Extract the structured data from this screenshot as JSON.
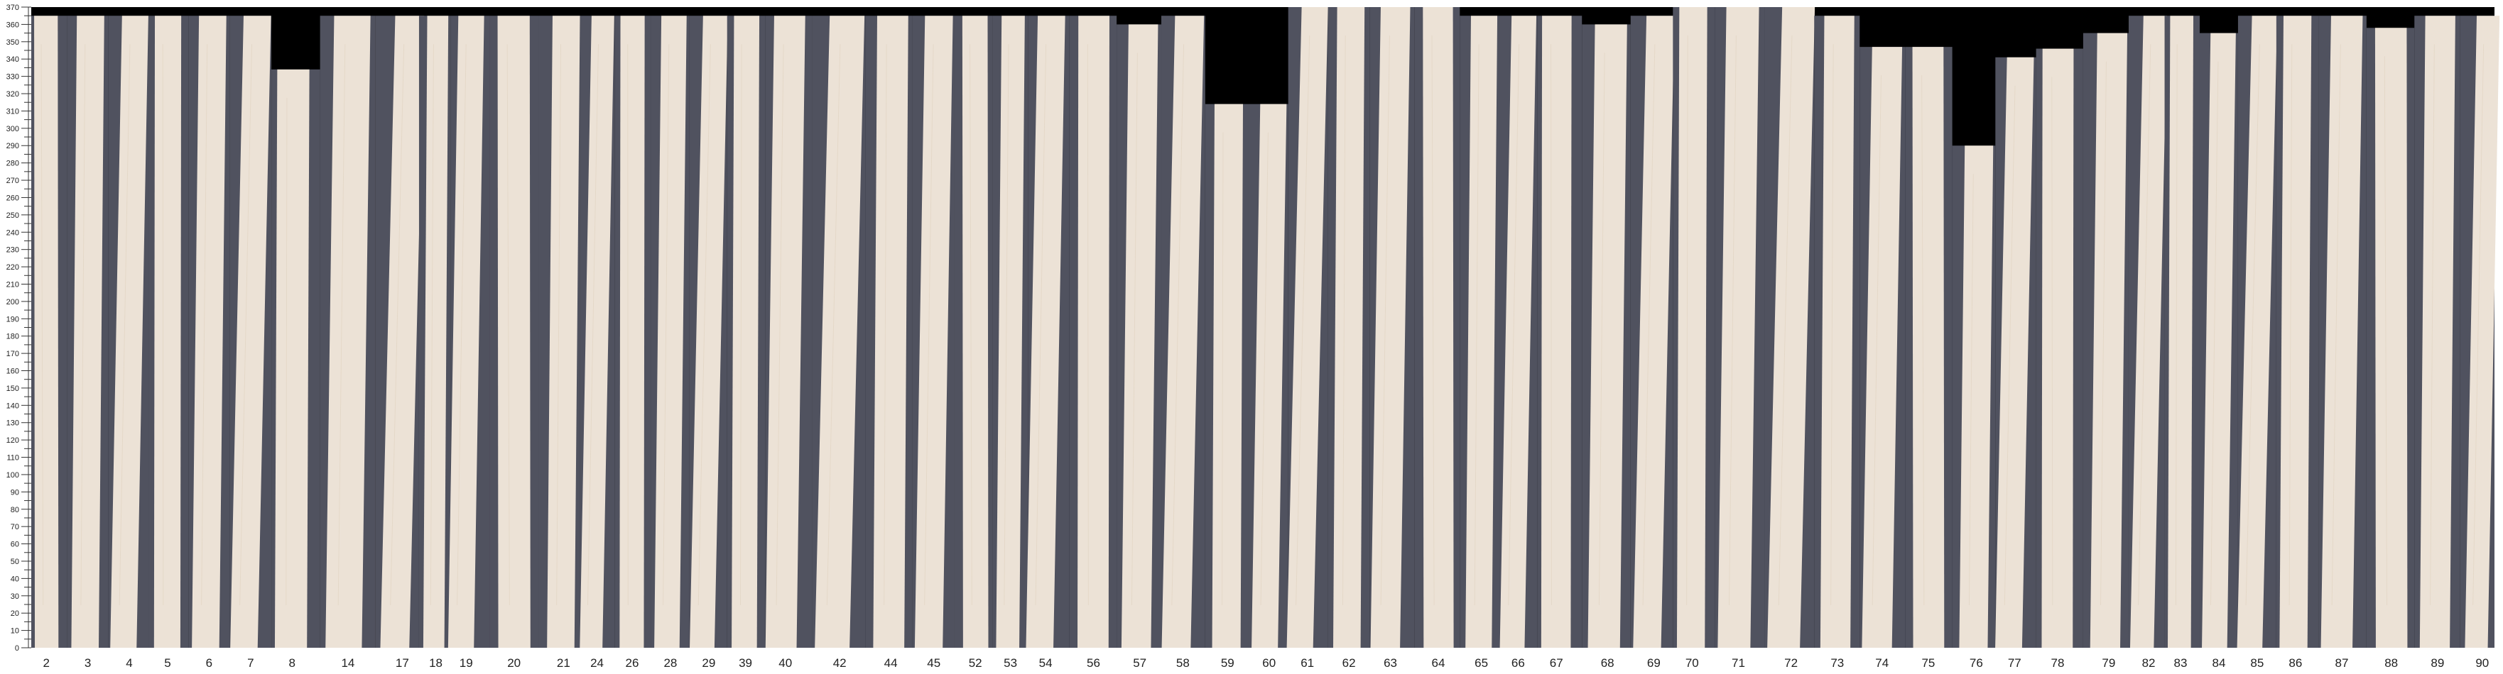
{
  "ruler": {
    "min": 0,
    "max": 370,
    "major_step": 10,
    "minor_step": 5
  },
  "colors": {
    "veneer": "#ece2d6",
    "backing": "#50525f",
    "void": "#000000",
    "grain": "#d8c7b0"
  },
  "strips": [
    {
      "label": "2",
      "length": 365
    },
    {
      "label": "3",
      "length": 365
    },
    {
      "label": "4",
      "length": 365
    },
    {
      "label": "5",
      "length": 365
    },
    {
      "label": "6",
      "length": 365
    },
    {
      "label": "7",
      "length": 365
    },
    {
      "label": "8",
      "length": 334
    },
    {
      "label": "14",
      "length": 365
    },
    {
      "label": "17",
      "length": 365
    },
    {
      "label": "18",
      "length": 365
    },
    {
      "label": "19",
      "length": 365
    },
    {
      "label": "20",
      "length": 365
    },
    {
      "label": "21",
      "length": 365
    },
    {
      "label": "24",
      "length": 365
    },
    {
      "label": "26",
      "length": 365
    },
    {
      "label": "28",
      "length": 365
    },
    {
      "label": "29",
      "length": 365
    },
    {
      "label": "39",
      "length": 365
    },
    {
      "label": "40",
      "length": 365
    },
    {
      "label": "42",
      "length": 365
    },
    {
      "label": "44",
      "length": 365
    },
    {
      "label": "45",
      "length": 365
    },
    {
      "label": "52",
      "length": 365
    },
    {
      "label": "53",
      "length": 365
    },
    {
      "label": "54",
      "length": 365
    },
    {
      "label": "56",
      "length": 365
    },
    {
      "label": "57",
      "length": 360
    },
    {
      "label": "58",
      "length": 365
    },
    {
      "label": "59",
      "length": 314
    },
    {
      "label": "60",
      "length": 314
    },
    {
      "label": "61",
      "length": 370
    },
    {
      "label": "62",
      "length": 370
    },
    {
      "label": "63",
      "length": 370
    },
    {
      "label": "64",
      "length": 370
    },
    {
      "label": "65",
      "length": 365
    },
    {
      "label": "66",
      "length": 365
    },
    {
      "label": "67",
      "length": 365
    },
    {
      "label": "68",
      "length": 360
    },
    {
      "label": "69",
      "length": 365
    },
    {
      "label": "70",
      "length": 370
    },
    {
      "label": "71",
      "length": 370
    },
    {
      "label": "72",
      "length": 370
    },
    {
      "label": "73",
      "length": 365
    },
    {
      "label": "74",
      "length": 347
    },
    {
      "label": "75",
      "length": 347
    },
    {
      "label": "76",
      "length": 290
    },
    {
      "label": "77",
      "length": 341
    },
    {
      "label": "78",
      "length": 346
    },
    {
      "label": "79",
      "length": 355
    },
    {
      "label": "82",
      "length": 365
    },
    {
      "label": "83",
      "length": 365
    },
    {
      "label": "84",
      "length": 355
    },
    {
      "label": "85",
      "length": 365
    },
    {
      "label": "86",
      "length": 365
    },
    {
      "label": "87",
      "length": 365
    },
    {
      "label": "88",
      "length": 358
    },
    {
      "label": "89",
      "length": 365
    },
    {
      "label": "90",
      "length": 365
    }
  ]
}
